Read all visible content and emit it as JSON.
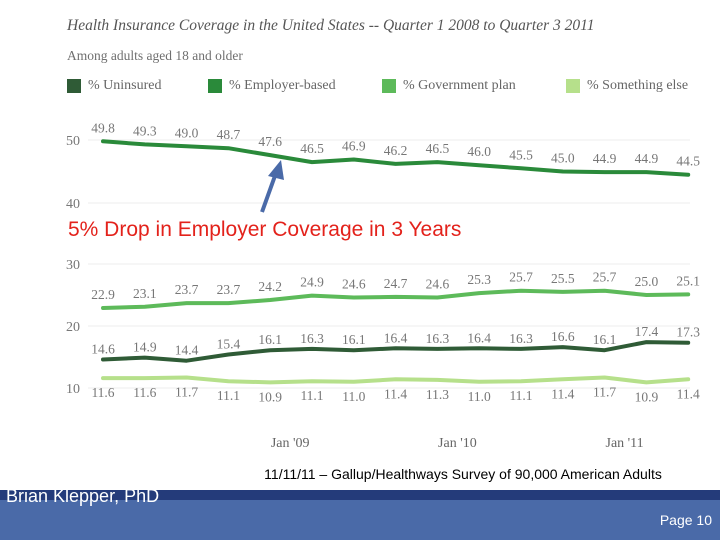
{
  "slide": {
    "source_line": "11/11/11 – Gallup/Healthways Survey of 90,000 American Adults",
    "author": "Brian Klepper, PhD",
    "page_number": "Page 10"
  },
  "chart_data": {
    "type": "line",
    "title": "Health Insurance Coverage in the United States -- Quarter 1 2008 to Quarter 3 2011",
    "subtitle": "Among adults aged 18 and older",
    "annotation": "5% Drop in Employer Coverage in 3 Years",
    "x_labels": [
      "Jan '09",
      "Jan '10",
      "Jan '11"
    ],
    "y_ticks_upper": [
      "50",
      "40"
    ],
    "y_ticks_lower": [
      "30",
      "20",
      "10"
    ],
    "series": [
      {
        "name": "% Uninsured",
        "color": "#2f5b36",
        "values": [
          14.6,
          14.9,
          14.4,
          15.4,
          16.1,
          16.3,
          16.1,
          16.4,
          16.3,
          16.4,
          16.3,
          16.6,
          16.1,
          17.4,
          17.3
        ],
        "labels": [
          "14.6",
          "14.9",
          "14.4",
          "15.4",
          "16.1",
          "16.3",
          "16.1",
          "16.4",
          "16.3",
          "16.4",
          "16.3",
          "16.6",
          "16.1",
          "17.4",
          "17.3"
        ]
      },
      {
        "name": "% Employer-based",
        "color": "#2a8a3a",
        "values": [
          49.8,
          49.3,
          49.0,
          48.7,
          47.6,
          46.5,
          46.9,
          46.2,
          46.5,
          46.0,
          45.5,
          45.0,
          44.9,
          44.9,
          44.5
        ],
        "labels": [
          "49.8",
          "49.3",
          "49.0",
          "48.7",
          "47.6",
          "46.5",
          "46.9",
          "46.2",
          "46.5",
          "46.0",
          "45.5",
          "45.0",
          "44.9",
          "44.9",
          "44.5"
        ]
      },
      {
        "name": "% Government plan",
        "color": "#5dba5a",
        "values": [
          22.9,
          23.1,
          23.7,
          23.7,
          24.2,
          24.9,
          24.6,
          24.7,
          24.6,
          25.3,
          25.7,
          25.5,
          25.7,
          25.0,
          25.1
        ],
        "labels": [
          "22.9",
          "23.1",
          "23.7",
          "23.7",
          "24.2",
          "24.9",
          "24.6",
          "24.7",
          "24.6",
          "25.3",
          "25.7",
          "25.5",
          "25.7",
          "25.0",
          "25.1"
        ]
      },
      {
        "name": "% Something else",
        "color": "#b6e08b",
        "values": [
          11.6,
          11.6,
          11.7,
          11.1,
          10.9,
          11.1,
          11.0,
          11.4,
          11.3,
          11.0,
          11.1,
          11.4,
          11.7,
          10.9,
          11.4
        ],
        "labels": [
          "11.6",
          "11.6",
          "11.7",
          "11.1",
          "10.9",
          "11.1",
          "11.0",
          "11.4",
          "11.3",
          "11.0",
          "11.1",
          "11.4",
          "11.7",
          "10.9",
          "11.4"
        ]
      }
    ]
  }
}
